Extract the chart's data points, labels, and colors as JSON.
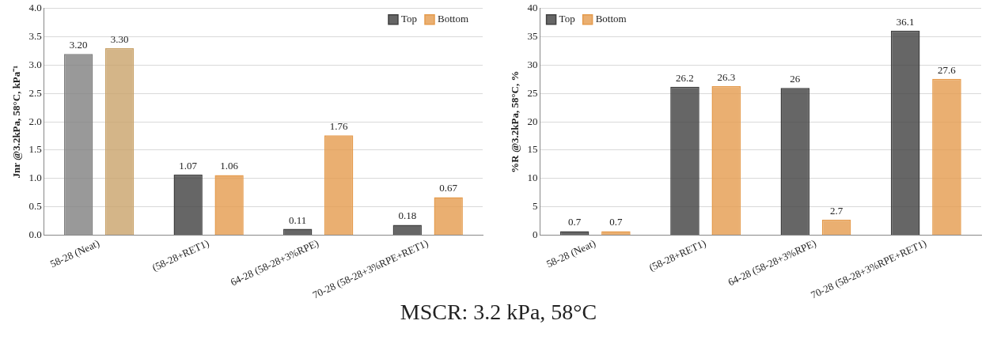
{
  "chart_data": [
    {
      "type": "bar",
      "ylabel": "Jnr @3.2kPa, 58°C, kPa⁻¹",
      "categories": [
        "58-28 (Neat)",
        "(58-28+RET1)",
        "64-28 (58-28+3%RPE)",
        "70-28 (58-28+3%RPE+RET1)"
      ],
      "series": [
        {
          "name": "Top",
          "color": "#404040",
          "colors": [
            "#7f7f7f",
            "#404040",
            "#404040",
            "#404040"
          ],
          "values": [
            3.2,
            1.07,
            0.11,
            0.18
          ],
          "value_labels": [
            "3.20",
            "1.07",
            "0.11",
            "0.18"
          ]
        },
        {
          "name": "Bottom",
          "color": "#e59b4d",
          "colors": [
            "#c9a36a",
            "#e59b4d",
            "#e59b4d",
            "#e59b4d"
          ],
          "values": [
            3.3,
            1.06,
            1.76,
            0.67
          ],
          "value_labels": [
            "3.30",
            "1.06",
            "1.76",
            "0.67"
          ]
        }
      ],
      "ylim": [
        0,
        4
      ],
      "yticks": [
        {
          "value": 0,
          "label": "0.0"
        },
        {
          "value": 0.5,
          "label": "0.5"
        },
        {
          "value": 1,
          "label": "1.0"
        },
        {
          "value": 1.5,
          "label": "1.5"
        },
        {
          "value": 2,
          "label": "2.0"
        },
        {
          "value": 2.5,
          "label": "2.5"
        },
        {
          "value": 3,
          "label": "3.0"
        },
        {
          "value": 3.5,
          "label": "3.5"
        },
        {
          "value": 4,
          "label": "4.0"
        }
      ],
      "grid": "y",
      "legend": "top right",
      "annotations": [
        "MSCR: 3.2 kPa, 58°C"
      ]
    },
    {
      "type": "bar",
      "ylabel": "%R @3.2kPa, 58°C, %",
      "categories": [
        "58-28 (Neat)",
        "(58-28+RET1)",
        "64-28 (58-28+3%RPE)",
        "70-28 (58-28+3%RPE+RET1)"
      ],
      "series": [
        {
          "name": "Top",
          "color": "#404040",
          "colors": [
            "#404040",
            "#404040",
            "#404040",
            "#404040"
          ],
          "values": [
            0.7,
            26.2,
            26,
            36.1
          ],
          "value_labels": [
            "0.7",
            "26.2",
            "26",
            "36.1"
          ]
        },
        {
          "name": "Bottom",
          "color": "#e59b4d",
          "colors": [
            "#e59b4d",
            "#e59b4d",
            "#e59b4d",
            "#e59b4d"
          ],
          "values": [
            0.7,
            26.3,
            2.7,
            27.6
          ],
          "value_labels": [
            "0.7",
            "26.3",
            "2.7",
            "27.6"
          ]
        }
      ],
      "ylim": [
        0,
        40
      ],
      "yticks": [
        0,
        5,
        10,
        15,
        20,
        25,
        30,
        35,
        40
      ],
      "grid": "y",
      "legend": "top left"
    }
  ]
}
